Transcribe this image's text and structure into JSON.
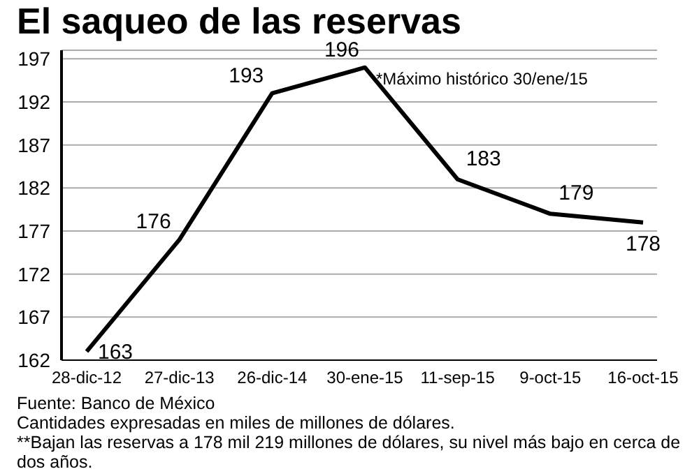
{
  "chart_data": {
    "type": "line",
    "title": "El saqueo de las reservas",
    "categories": [
      "28-dic-12",
      "27-dic-13",
      "26-dic-14",
      "30-ene-15",
      "11-sep-15",
      "9-oct-15",
      "16-oct-15"
    ],
    "series": [
      {
        "color": "#000000",
        "values": [
          163,
          176,
          193,
          196,
          183,
          179,
          178
        ]
      }
    ],
    "ylim": [
      162,
      198
    ],
    "yticks": [
      162,
      167,
      172,
      177,
      182,
      187,
      192,
      197
    ],
    "grid": "y",
    "marker": "none",
    "line_style": "solid",
    "data_labels": true,
    "legend": false,
    "annotations": [
      {
        "text": "*Máximo histórico 30/ene/15",
        "x": "30-ene-15",
        "y": 196
      },
      "Fuente: Banco de México",
      "Cantidades expresadas en miles de millones de dólares.",
      "**Bajan las reservas a 178 mil 219 millones de dólares, su nivel más bajo en cerca de dos años."
    ]
  }
}
